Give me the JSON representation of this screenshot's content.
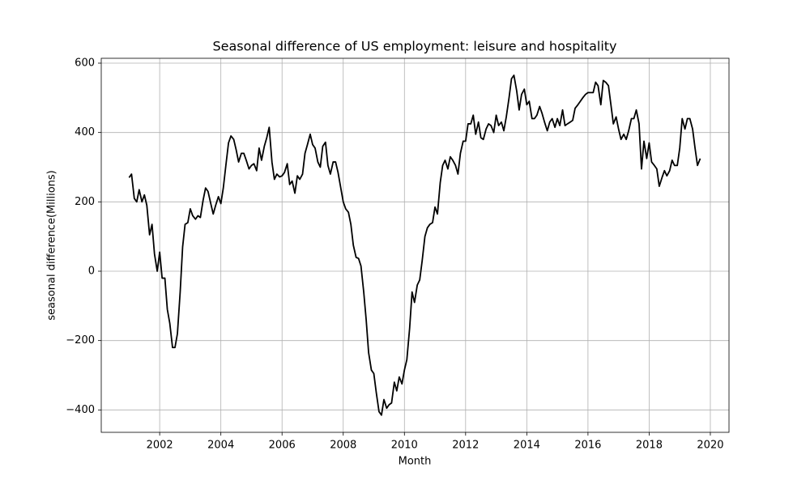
{
  "chart_data": {
    "type": "line",
    "title": "Seasonal difference of US employment: leisure and hospitality",
    "x_label": "Month",
    "y_label": "seasonal difference(Millions)",
    "color": "#000000",
    "grid": true,
    "xlim": [
      2000.09,
      2020.61
    ],
    "ylim": [
      -464.6,
      614
    ],
    "xticks": [
      2002,
      2004,
      2006,
      2008,
      2010,
      2012,
      2014,
      2016,
      2018,
      2020
    ],
    "yticks": [
      {
        "value": -400,
        "label": "−400"
      },
      {
        "value": -200,
        "label": "−200"
      },
      0,
      200,
      400,
      600
    ],
    "x": [
      2001,
      2001.08,
      2001.17,
      2001.25,
      2001.33,
      2001.42,
      2001.5,
      2001.58,
      2001.67,
      2001.75,
      2001.83,
      2001.92,
      2002,
      2002.08,
      2002.17,
      2002.25,
      2002.33,
      2002.42,
      2002.5,
      2002.58,
      2002.67,
      2002.75,
      2002.83,
      2002.92,
      2003,
      2003.08,
      2003.17,
      2003.25,
      2003.33,
      2003.42,
      2003.5,
      2003.58,
      2003.67,
      2003.75,
      2003.83,
      2003.92,
      2004,
      2004.08,
      2004.17,
      2004.25,
      2004.33,
      2004.42,
      2004.5,
      2004.58,
      2004.67,
      2004.75,
      2004.83,
      2004.92,
      2005,
      2005.08,
      2005.17,
      2005.25,
      2005.33,
      2005.42,
      2005.5,
      2005.58,
      2005.67,
      2005.75,
      2005.83,
      2005.92,
      2006,
      2006.08,
      2006.17,
      2006.25,
      2006.33,
      2006.42,
      2006.5,
      2006.58,
      2006.67,
      2006.75,
      2006.83,
      2006.92,
      2007,
      2007.08,
      2007.17,
      2007.25,
      2007.33,
      2007.42,
      2007.5,
      2007.58,
      2007.67,
      2007.75,
      2007.83,
      2007.92,
      2008,
      2008.08,
      2008.17,
      2008.25,
      2008.33,
      2008.42,
      2008.5,
      2008.58,
      2008.67,
      2008.75,
      2008.83,
      2008.92,
      2009,
      2009.08,
      2009.17,
      2009.25,
      2009.33,
      2009.42,
      2009.5,
      2009.58,
      2009.67,
      2009.75,
      2009.83,
      2009.92,
      2010,
      2010.08,
      2010.17,
      2010.25,
      2010.33,
      2010.42,
      2010.5,
      2010.58,
      2010.67,
      2010.75,
      2010.83,
      2010.92,
      2011,
      2011.08,
      2011.17,
      2011.25,
      2011.33,
      2011.42,
      2011.5,
      2011.58,
      2011.67,
      2011.75,
      2011.83,
      2011.92,
      2012,
      2012.08,
      2012.17,
      2012.25,
      2012.33,
      2012.42,
      2012.5,
      2012.58,
      2012.67,
      2012.75,
      2012.83,
      2012.92,
      2013,
      2013.08,
      2013.17,
      2013.25,
      2013.33,
      2013.42,
      2013.5,
      2013.58,
      2013.67,
      2013.75,
      2013.83,
      2013.92,
      2014,
      2014.08,
      2014.17,
      2014.25,
      2014.33,
      2014.42,
      2014.5,
      2014.58,
      2014.67,
      2014.75,
      2014.83,
      2014.92,
      2015,
      2015.08,
      2015.17,
      2015.25,
      2015.33,
      2015.42,
      2015.5,
      2015.58,
      2015.67,
      2015.75,
      2015.83,
      2015.92,
      2016,
      2016.08,
      2016.17,
      2016.25,
      2016.33,
      2016.42,
      2016.5,
      2016.58,
      2016.67,
      2016.75,
      2016.83,
      2016.92,
      2017,
      2017.08,
      2017.17,
      2017.25,
      2017.33,
      2017.42,
      2017.5,
      2017.58,
      2017.67,
      2017.75,
      2017.83,
      2017.92,
      2018,
      2018.08,
      2018.17,
      2018.25,
      2018.33,
      2018.42,
      2018.5,
      2018.58,
      2018.67,
      2018.75,
      2018.83,
      2018.92,
      2019,
      2019.08,
      2019.17,
      2019.25,
      2019.33,
      2019.42,
      2019.5,
      2019.58,
      2019.67
    ],
    "values": [
      270,
      280,
      210,
      200,
      235,
      200,
      220,
      190,
      105,
      135,
      50,
      0,
      55,
      -20,
      -20,
      -110,
      -150,
      -220,
      -220,
      -180,
      -60,
      70,
      135,
      140,
      180,
      160,
      150,
      160,
      155,
      205,
      240,
      230,
      195,
      165,
      190,
      215,
      195,
      240,
      310,
      370,
      390,
      380,
      350,
      315,
      340,
      340,
      320,
      295,
      305,
      310,
      290,
      355,
      320,
      360,
      385,
      415,
      315,
      265,
      280,
      272,
      275,
      285,
      310,
      250,
      260,
      225,
      275,
      265,
      280,
      340,
      365,
      395,
      365,
      355,
      315,
      300,
      360,
      372,
      305,
      280,
      315,
      315,
      285,
      240,
      200,
      180,
      170,
      135,
      75,
      40,
      37,
      15,
      -60,
      -140,
      -235,
      -285,
      -295,
      -350,
      -405,
      -415,
      -370,
      -395,
      -385,
      -380,
      -320,
      -345,
      -305,
      -325,
      -285,
      -255,
      -165,
      -60,
      -90,
      -40,
      -25,
      30,
      100,
      125,
      135,
      140,
      185,
      165,
      255,
      305,
      320,
      295,
      330,
      320,
      305,
      280,
      340,
      375,
      375,
      425,
      425,
      450,
      395,
      430,
      385,
      380,
      410,
      425,
      420,
      400,
      450,
      420,
      430,
      405,
      445,
      500,
      555,
      565,
      520,
      465,
      510,
      525,
      480,
      490,
      440,
      440,
      450,
      475,
      455,
      430,
      405,
      430,
      440,
      415,
      440,
      420,
      465,
      420,
      425,
      430,
      435,
      470,
      480,
      490,
      500,
      510,
      515,
      515,
      515,
      545,
      535,
      480,
      550,
      545,
      535,
      480,
      425,
      445,
      410,
      380,
      395,
      380,
      405,
      440,
      440,
      465,
      425,
      295,
      375,
      325,
      370,
      315,
      305,
      295,
      245,
      270,
      290,
      275,
      290,
      320,
      305,
      305,
      355,
      440,
      410,
      440,
      440,
      410,
      355,
      305,
      325
    ]
  }
}
